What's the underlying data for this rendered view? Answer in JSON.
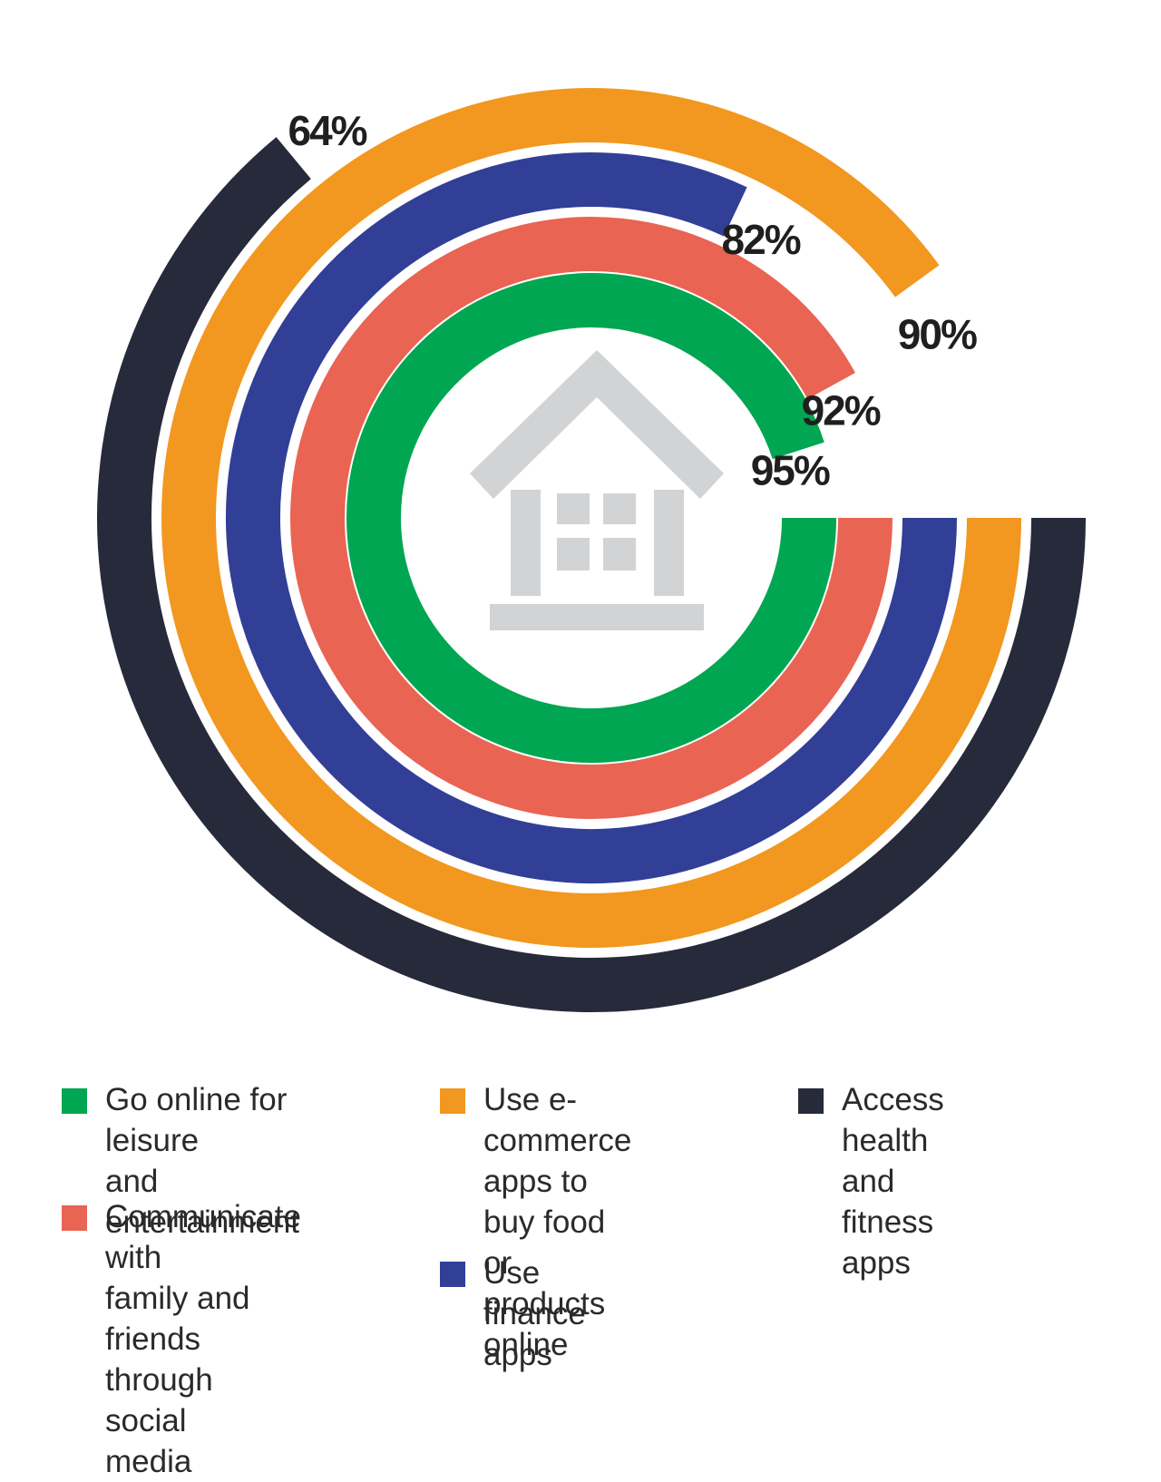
{
  "chart_data": {
    "type": "radial-bar",
    "series": [
      {
        "name": "Go online for leisure and entertainment",
        "value": 95,
        "label": "95%",
        "color": "#00a651"
      },
      {
        "name": "Communicate with family and friends through social media",
        "value": 92,
        "label": "92%",
        "color": "#e96452"
      },
      {
        "name": "Use finance apps",
        "value": 82,
        "label": "82%",
        "color": "#323f97"
      },
      {
        "name": "Use e-commerce apps to buy food or products online",
        "value": 90,
        "label": "90%",
        "color": "#f2971f"
      },
      {
        "name": "Access health and fitness apps",
        "value": 64,
        "label": "64%",
        "color": "#272a3a"
      }
    ],
    "value_unit": "%",
    "scale_max": 100,
    "center_icon": "house-icon",
    "center_icon_color": "#d1d3d4",
    "legend_position": "bottom"
  },
  "legend": {
    "leisure": "Go online for leisure\nand entertainment",
    "ecommerce": "Use e-commerce\napps to buy food or\nproducts online",
    "health": "Access health and\nfitness apps",
    "social": "Communicate with\nfamily and friends\nthrough social\nmedia",
    "finance": "Use finance apps"
  }
}
